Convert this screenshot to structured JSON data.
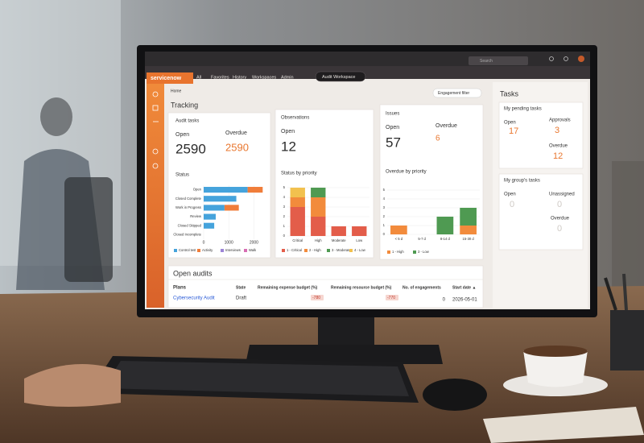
{
  "nav": {
    "logo": "servicenow",
    "items": [
      "All",
      "Favorites",
      "History",
      "Workspaces",
      "Admin"
    ],
    "workspace": "Audit Workspace",
    "search": "Search"
  },
  "page": {
    "home": "Home",
    "filter": "Engagement filter",
    "section": "Tracking"
  },
  "cards": [
    {
      "title": "Audit tasks",
      "stats": [
        {
          "label": "Open",
          "value": 2590
        },
        {
          "label": "Overdue",
          "value": 2590
        }
      ]
    },
    {
      "title": "Observations",
      "stats": [
        {
          "label": "Open",
          "value": 12
        }
      ]
    },
    {
      "title": "Issues",
      "stats": [
        {
          "label": "Open",
          "value": 57
        },
        {
          "label": "Overdue",
          "value": 6
        }
      ]
    }
  ],
  "tasks": {
    "title": "Tasks",
    "groups": [
      {
        "title": "My pending tasks",
        "stats": [
          {
            "label": "Open",
            "value": 17
          },
          {
            "label": "Approvals",
            "value": 3
          },
          {
            "label": "Overdue",
            "value": 12
          }
        ]
      },
      {
        "title": "My group's tasks",
        "stats": [
          {
            "label": "Open",
            "value": 0
          },
          {
            "label": "Unassigned",
            "value": 0
          },
          {
            "label": "Overdue",
            "value": 0
          }
        ]
      }
    ]
  },
  "audits": {
    "title": "Open audits",
    "columns": [
      "Plans",
      "State",
      "Remaining expense budget (%)",
      "Remaining resource budget (%)",
      "No. of engagements",
      "Start date ▲"
    ],
    "rows": [
      [
        "Cybersecurity Audit",
        "Draft",
        "-780",
        "-770",
        "0",
        "2026-05-01"
      ]
    ]
  },
  "chart_data": [
    {
      "type": "bar",
      "orientation": "horizontal",
      "stacked": true,
      "title": "Status",
      "categories": [
        "Open",
        "Closed Complete",
        "Work in Progress",
        "Review",
        "Closed Skipped",
        "Closed Incomplete"
      ],
      "series": [
        {
          "name": "Control test",
          "color": "#45a3dc",
          "values": [
            1750,
            1300,
            830,
            480,
            420,
            0
          ]
        },
        {
          "name": "Activity",
          "color": "#f07d3a",
          "values": [
            600,
            0,
            570,
            0,
            0,
            0
          ]
        },
        {
          "name": "Interviews",
          "color": "#9c84d6",
          "values": [
            0,
            0,
            0,
            0,
            0,
            0
          ]
        },
        {
          "name": "Walk",
          "color": "#d86db3",
          "values": [
            0,
            0,
            0,
            0,
            0,
            0
          ]
        }
      ],
      "xlim": [
        0,
        2500
      ],
      "xticks": [
        0,
        1000,
        2000
      ]
    },
    {
      "type": "bar",
      "orientation": "vertical",
      "stacked": true,
      "title": "Status by priority",
      "categories": [
        "Critical",
        "High",
        "Moderate",
        "Low"
      ],
      "series": [
        {
          "name": "1 - Critical",
          "color": "#e35d4a",
          "values": [
            3,
            2,
            1,
            1
          ]
        },
        {
          "name": "2 - High",
          "color": "#f28b3c",
          "values": [
            1,
            2,
            0,
            0
          ]
        },
        {
          "name": "3 - Moderate",
          "color": "#4f9a52",
          "values": [
            0,
            1,
            0,
            0
          ]
        },
        {
          "name": "4 - Low",
          "color": "#f2c14e",
          "values": [
            1,
            0,
            0,
            0
          ]
        }
      ],
      "ylim": [
        0,
        5
      ],
      "yticks": [
        0,
        1,
        2,
        3,
        4,
        5
      ]
    },
    {
      "type": "bar",
      "orientation": "vertical",
      "stacked": true,
      "title": "Overdue by priority",
      "categories": [
        "< 5 d",
        "5-7 d",
        "8-14 d",
        "15-30 d"
      ],
      "series": [
        {
          "name": "1 - High",
          "color": "#f28b3c",
          "values": [
            1,
            0,
            0,
            1
          ]
        },
        {
          "name": "3 - Low",
          "color": "#4f9a52",
          "values": [
            0,
            0,
            2,
            2
          ]
        }
      ],
      "ylim": [
        0,
        5
      ],
      "yticks": [
        0,
        1,
        2,
        3,
        4,
        5
      ]
    }
  ]
}
